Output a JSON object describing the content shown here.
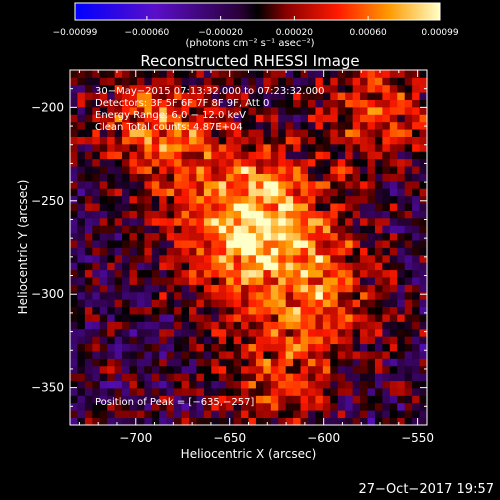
{
  "chart_data": {
    "type": "heatmap",
    "title": "Reconstructed RHESSI Image",
    "xlabel": "Heliocentric X (arcsec)",
    "ylabel": "Heliocentric Y (arcsec)",
    "xlim": [
      -735,
      -545
    ],
    "ylim": [
      -370,
      -180
    ],
    "x_ticks": [
      -700,
      -650,
      -600,
      -550
    ],
    "y_ticks": [
      -350,
      -300,
      -250,
      -200
    ],
    "x_tick_labels": [
      "−700",
      "−650",
      "−600",
      "−550"
    ],
    "y_tick_labels": [
      "−350",
      "−300",
      "−250",
      "−200"
    ],
    "colorbar": {
      "range": [
        -0.00099,
        0.00099
      ],
      "ticks": [
        -0.00099,
        -0.0006,
        -0.0002,
        0.0002,
        0.0006,
        0.00099
      ],
      "tick_labels": [
        "−0.00099",
        "−0.00060",
        "−0.00020",
        "0.00020",
        "0.00060",
        "0.00099"
      ],
      "units": "(photons cm⁻² s⁻¹ asec⁻²)"
    },
    "info_lines": [
      "30−May−2015 07:13:32.000 to 07:23:32.000",
      "Detectors: 3F 5F 6F 7F 8F 9F, Att 0",
      "Energy Range: 6.0 − 12.0 keV",
      "Clean    Total counts: 4.87E+04"
    ],
    "peak_label": "Position of Peak = [−635,−257]",
    "peak_position": [
      -635,
      -257
    ],
    "sources": [
      {
        "x": -638,
        "y": -262,
        "peak": 0.00099
      },
      {
        "x": -690,
        "y": -210,
        "peak": 0.0006
      },
      {
        "x": -570,
        "y": -200,
        "peak": 0.0005
      },
      {
        "x": -600,
        "y": -300,
        "peak": 0.00045
      },
      {
        "x": -625,
        "y": -345,
        "peak": 0.00045
      }
    ]
  },
  "footer_date": "27−Oct−2017 19:57"
}
